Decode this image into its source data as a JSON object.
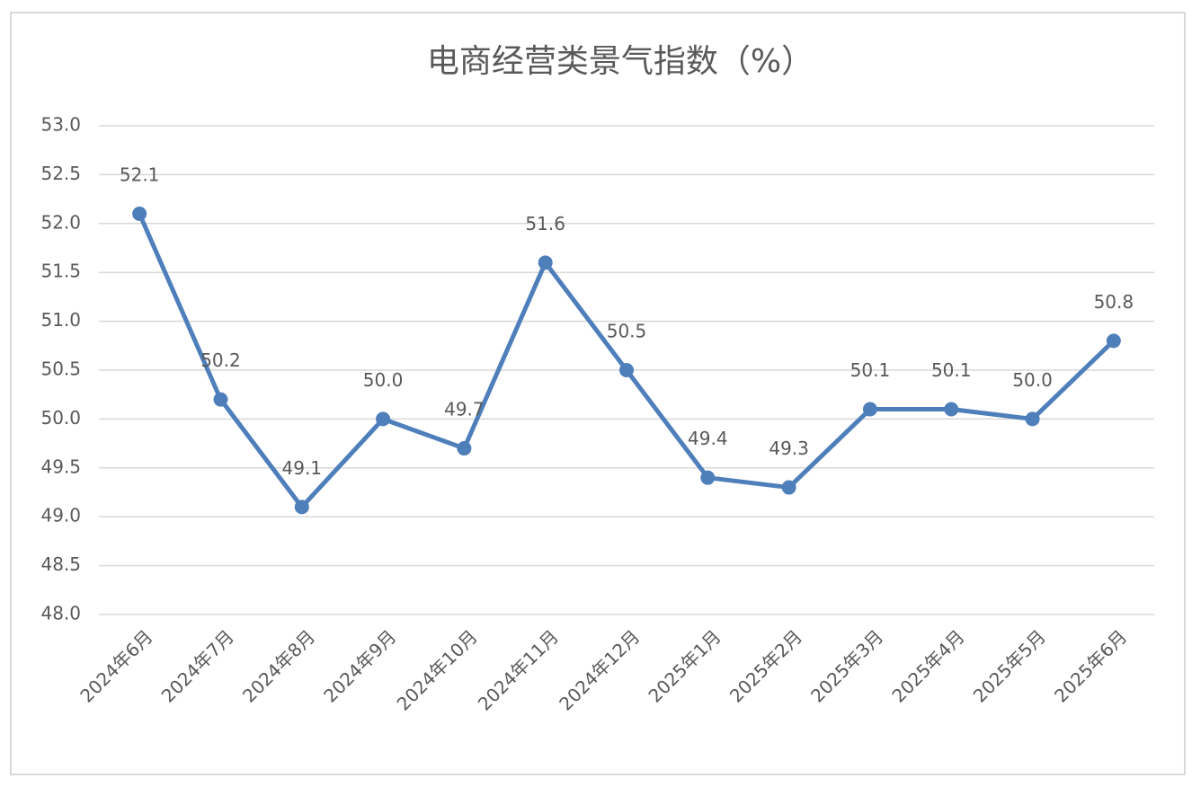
{
  "chart_data": {
    "type": "line",
    "title": "电商经营类景气指数（%）",
    "categories": [
      "2024年6月",
      "2024年7月",
      "2024年8月",
      "2024年9月",
      "2024年10月",
      "2024年11月",
      "2024年12月",
      "2025年1月",
      "2025年2月",
      "2025年3月",
      "2025年4月",
      "2025年5月",
      "2025年6月"
    ],
    "values": [
      52.1,
      50.2,
      49.1,
      50.0,
      49.7,
      51.6,
      50.5,
      49.4,
      49.3,
      50.1,
      50.1,
      50.0,
      50.8
    ],
    "value_labels": [
      "52.1",
      "50.2",
      "49.1",
      "50.0",
      "49.7",
      "51.6",
      "50.5",
      "49.4",
      "49.3",
      "50.1",
      "50.1",
      "50.0",
      "50.8"
    ],
    "color": "#4f7fbb",
    "ylim": [
      48,
      53
    ],
    "yticks": [
      {
        "value": 48,
        "label": "48.0"
      },
      {
        "value": 48.5,
        "label": "48.5"
      },
      {
        "value": 49,
        "label": "49.0"
      },
      {
        "value": 49.5,
        "label": "49.5"
      },
      {
        "value": 50,
        "label": "50.0"
      },
      {
        "value": 50.5,
        "label": "50.5"
      },
      {
        "value": 51,
        "label": "51.0"
      },
      {
        "value": 51.5,
        "label": "51.5"
      },
      {
        "value": 52,
        "label": "52.0"
      },
      {
        "value": 52.5,
        "label": "52.5"
      },
      {
        "value": 53,
        "label": "53.0"
      }
    ],
    "grid": true
  }
}
